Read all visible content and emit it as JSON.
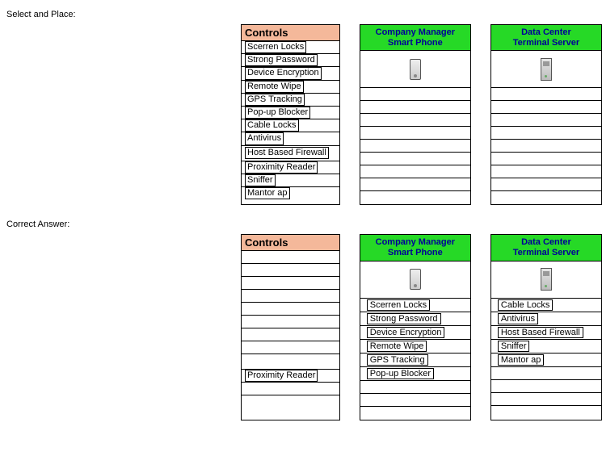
{
  "labels": {
    "select_and_place": "Select and Place:",
    "correct_answer": "Correct Answer:"
  },
  "colors": {
    "controls_header_bg": "#f4b89a",
    "target_header_bg": "#26d926",
    "target_header_text": "#000099",
    "border": "#000000",
    "background": "#ffffff"
  },
  "controls_header": "Controls",
  "controls_all": [
    "Scerren Locks",
    "Strong Password",
    "Device Encryption",
    "Remote Wipe",
    "GPS Tracking",
    "Pop-up Blocker",
    "Cable Locks",
    "Antivirus",
    "Host Based Firewall",
    "Proximity Reader",
    "Sniffer",
    "Mantor ap"
  ],
  "targets": [
    {
      "title_line1": "Company Manager",
      "title_line2": "Smart Phone",
      "icon": "phone"
    },
    {
      "title_line1": "Data Center",
      "title_line2": "Terminal Server",
      "icon": "server"
    }
  ],
  "question": {
    "controls_remaining": [
      "Scerren Locks",
      "Strong Password",
      "Device Encryption",
      "Remote Wipe",
      "GPS Tracking",
      "Pop-up Blocker",
      "Cable Locks",
      "Antivirus",
      "Host Based Firewall",
      "Proximity Reader",
      "Sniffer",
      "Mantor ap"
    ],
    "slots": 9,
    "placed": {
      "phone": [],
      "server": []
    }
  },
  "answer": {
    "controls_remaining": [
      "",
      "",
      "",
      "",
      "",
      "",
      "",
      "",
      "",
      "Proximity Reader",
      "",
      ""
    ],
    "slots_phone": [
      "Scerren Locks",
      "Strong Password",
      "Device Encryption",
      "Remote Wipe",
      "GPS Tracking",
      "Pop-up Blocker",
      "",
      "",
      ""
    ],
    "slots_server": [
      "Cable Locks",
      "Antivirus",
      "Host Based Firewall",
      "Sniffer",
      "Mantor ap",
      "",
      "",
      "",
      ""
    ]
  }
}
